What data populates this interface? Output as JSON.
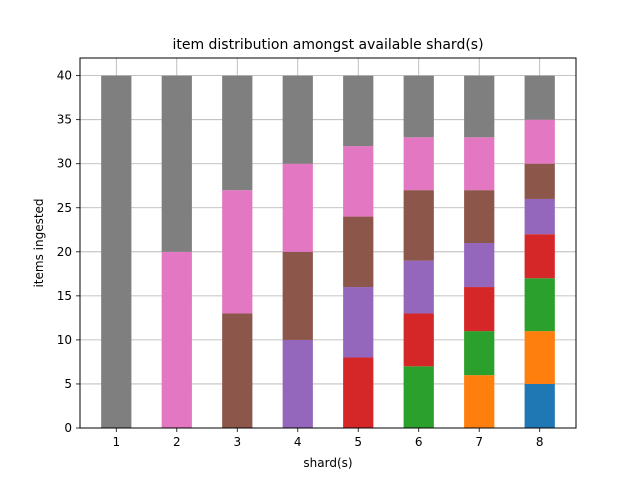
{
  "chart_data": {
    "type": "bar",
    "stacked": true,
    "title": "item distribution amongst available shard(s)",
    "xlabel": "shard(s)",
    "ylabel": "items ingested",
    "categories": [
      "1",
      "2",
      "3",
      "4",
      "5",
      "6",
      "7",
      "8"
    ],
    "ylim": [
      0,
      42
    ],
    "yticks": [
      0,
      5,
      10,
      15,
      20,
      25,
      30,
      35,
      40
    ],
    "grid": true,
    "legend": false,
    "series": [
      {
        "color": "#1f77b4",
        "values": [
          0,
          0,
          0,
          0,
          0,
          0,
          0,
          5
        ]
      },
      {
        "color": "#ff7f0e",
        "values": [
          0,
          0,
          0,
          0,
          0,
          0,
          6,
          6
        ]
      },
      {
        "color": "#2ca02c",
        "values": [
          0,
          0,
          0,
          0,
          0,
          7,
          5,
          6
        ]
      },
      {
        "color": "#d62728",
        "values": [
          0,
          0,
          0,
          0,
          8,
          6,
          5,
          5
        ]
      },
      {
        "color": "#9467bd",
        "values": [
          0,
          0,
          0,
          10,
          8,
          6,
          5,
          4
        ]
      },
      {
        "color": "#8c564b",
        "values": [
          0,
          0,
          13,
          10,
          8,
          8,
          6,
          4
        ]
      },
      {
        "color": "#e377c2",
        "values": [
          0,
          20,
          14,
          10,
          8,
          6,
          6,
          5
        ]
      },
      {
        "color": "#7f7f7f",
        "values": [
          40,
          20,
          13,
          10,
          8,
          7,
          7,
          5
        ]
      }
    ]
  }
}
